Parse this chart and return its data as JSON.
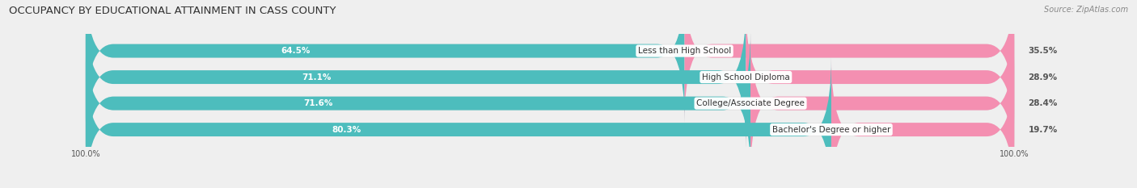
{
  "title": "OCCUPANCY BY EDUCATIONAL ATTAINMENT IN CASS COUNTY",
  "source": "Source: ZipAtlas.com",
  "categories": [
    "Less than High School",
    "High School Diploma",
    "College/Associate Degree",
    "Bachelor's Degree or higher"
  ],
  "owner_pct": [
    64.5,
    71.1,
    71.6,
    80.3
  ],
  "renter_pct": [
    35.5,
    28.9,
    28.4,
    19.7
  ],
  "owner_color": "#4dbdbd",
  "renter_color": "#f48fb1",
  "bg_color": "#efefef",
  "bar_bg_color": "#e0e0e0",
  "title_fontsize": 9.5,
  "label_fontsize": 7.5,
  "pct_fontsize": 7.5,
  "tick_fontsize": 7,
  "legend_fontsize": 8,
  "source_fontsize": 7,
  "owner_label_color": "#ffffff",
  "renter_label_color": "#555555",
  "cat_label_color": "#333333"
}
